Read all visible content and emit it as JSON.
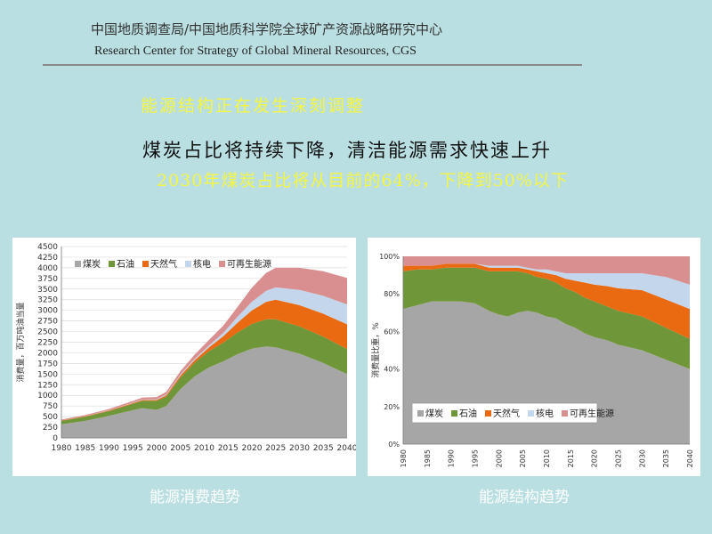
{
  "header": {
    "org_cn": "中国地质调查局/中国地质科学院全球矿产资源战略研究中心",
    "org_en": "Research Center for Strategy of Global Mineral Resources, CGS"
  },
  "slide": {
    "headline": "能源结构正在发生深刻调整",
    "statement": "煤炭占比将持续下降，清洁能源需求快速上升",
    "detail": "2030年煤炭占比将从目前的64%，下降到50%以下"
  },
  "captions": {
    "left": "能源消费趋势",
    "right": "能源结构趋势"
  },
  "colors": {
    "coal": "#a6a6a6",
    "oil": "#70963a",
    "gas": "#ea6a12",
    "nuclear": "#c3d6ec",
    "renewable": "#d98f8f",
    "background": "#b9dfe3",
    "highlight": "#f5f542"
  },
  "chart_data": [
    {
      "type": "area",
      "stacked": true,
      "title": "",
      "xlabel": "",
      "ylabel": "消费量，百万吨油当量",
      "x": [
        1980,
        1985,
        1990,
        1995,
        1997,
        2000,
        2002,
        2005,
        2008,
        2011,
        2014,
        2017,
        2020,
        2023,
        2025,
        2030,
        2035,
        2040
      ],
      "xticks": [
        "1980",
        "1985",
        "1990",
        "1995",
        "2000",
        "2005",
        "2010",
        "2015",
        "2020",
        "2025",
        "2030",
        "2035",
        "2040"
      ],
      "yticks": [
        "0",
        "250",
        "500",
        "750",
        "1000",
        "1250",
        "1500",
        "1750",
        "2000",
        "2250",
        "2500",
        "2750",
        "3000",
        "3250",
        "3500",
        "3750",
        "4000",
        "4250",
        "4500"
      ],
      "xlim": [
        1980,
        2040
      ],
      "ylim": [
        0,
        4500
      ],
      "grid": true,
      "legend_position": "top-left",
      "series": [
        {
          "name": "煤炭",
          "color_key": "coal",
          "values": [
            320,
            400,
            520,
            650,
            700,
            660,
            750,
            1150,
            1450,
            1660,
            1800,
            1970,
            2100,
            2150,
            2130,
            1980,
            1760,
            1500
          ]
        },
        {
          "name": "石油",
          "color_key": "oil",
          "values": [
            80,
            95,
            110,
            150,
            170,
            210,
            220,
            270,
            320,
            380,
            440,
            510,
            580,
            640,
            660,
            640,
            620,
            590
          ]
        },
        {
          "name": "天然气",
          "color_key": "gas",
          "values": [
            10,
            12,
            15,
            18,
            20,
            25,
            30,
            45,
            60,
            90,
            150,
            230,
            320,
            410,
            460,
            500,
            540,
            580
          ]
        },
        {
          "name": "核电",
          "color_key": "nuclear",
          "values": [
            2,
            3,
            5,
            10,
            12,
            15,
            20,
            25,
            30,
            45,
            80,
            140,
            200,
            260,
            290,
            360,
            420,
            470
          ]
        },
        {
          "name": "可再生能源",
          "color_key": "renewable",
          "values": [
            20,
            25,
            30,
            40,
            45,
            50,
            60,
            80,
            100,
            130,
            170,
            230,
            330,
            420,
            460,
            520,
            580,
            620
          ]
        }
      ]
    },
    {
      "type": "area",
      "stacked": true,
      "percent": true,
      "title": "",
      "xlabel": "",
      "ylabel": "消费量比重，%",
      "x": [
        1980,
        1983,
        1986,
        1989,
        1992,
        1995,
        1998,
        2000,
        2002,
        2004,
        2006,
        2008,
        2010,
        2012,
        2014,
        2016,
        2018,
        2020,
        2023,
        2025,
        2030,
        2035,
        2040
      ],
      "xticks": [
        "1980",
        "1985",
        "1990",
        "1995",
        "2000",
        "2005",
        "2010",
        "2015",
        "2020",
        "2025",
        "2030",
        "2035",
        "2040"
      ],
      "yticks": [
        "0%",
        "20%",
        "40%",
        "60%",
        "80%",
        "100%"
      ],
      "xlim": [
        1980,
        2040
      ],
      "ylim": [
        0,
        100
      ],
      "grid": false,
      "legend_position": "bottom-left",
      "series": [
        {
          "name": "煤炭",
          "color_key": "coal",
          "values": [
            72,
            74,
            76,
            76,
            76,
            75,
            71,
            69,
            68,
            70,
            71,
            70,
            68,
            67,
            64,
            62,
            59,
            57,
            55,
            53,
            50,
            45,
            40
          ]
        },
        {
          "name": "石油",
          "color_key": "oil",
          "values": [
            20,
            19,
            17,
            18,
            18,
            19,
            21,
            23,
            24,
            22,
            20,
            19,
            20,
            19,
            19,
            19,
            19,
            19,
            18,
            18,
            18,
            17,
            16
          ]
        },
        {
          "name": "天然气",
          "color_key": "gas",
          "values": [
            3,
            2,
            2,
            2,
            2,
            2,
            2,
            2,
            2,
            2,
            2,
            3,
            3,
            4,
            5,
            6,
            8,
            9,
            11,
            12,
            14,
            15,
            16
          ]
        },
        {
          "name": "核电",
          "color_key": "nuclear",
          "values": [
            0,
            0,
            0,
            0,
            0,
            0,
            1,
            1,
            1,
            1,
            1,
            1,
            2,
            2,
            3,
            4,
            5,
            6,
            7,
            8,
            9,
            12,
            13
          ]
        },
        {
          "name": "可再生能源",
          "color_key": "renewable",
          "values": [
            5,
            5,
            5,
            4,
            4,
            4,
            5,
            5,
            5,
            5,
            6,
            7,
            7,
            8,
            9,
            9,
            9,
            9,
            9,
            9,
            9,
            11,
            15
          ]
        }
      ]
    }
  ]
}
